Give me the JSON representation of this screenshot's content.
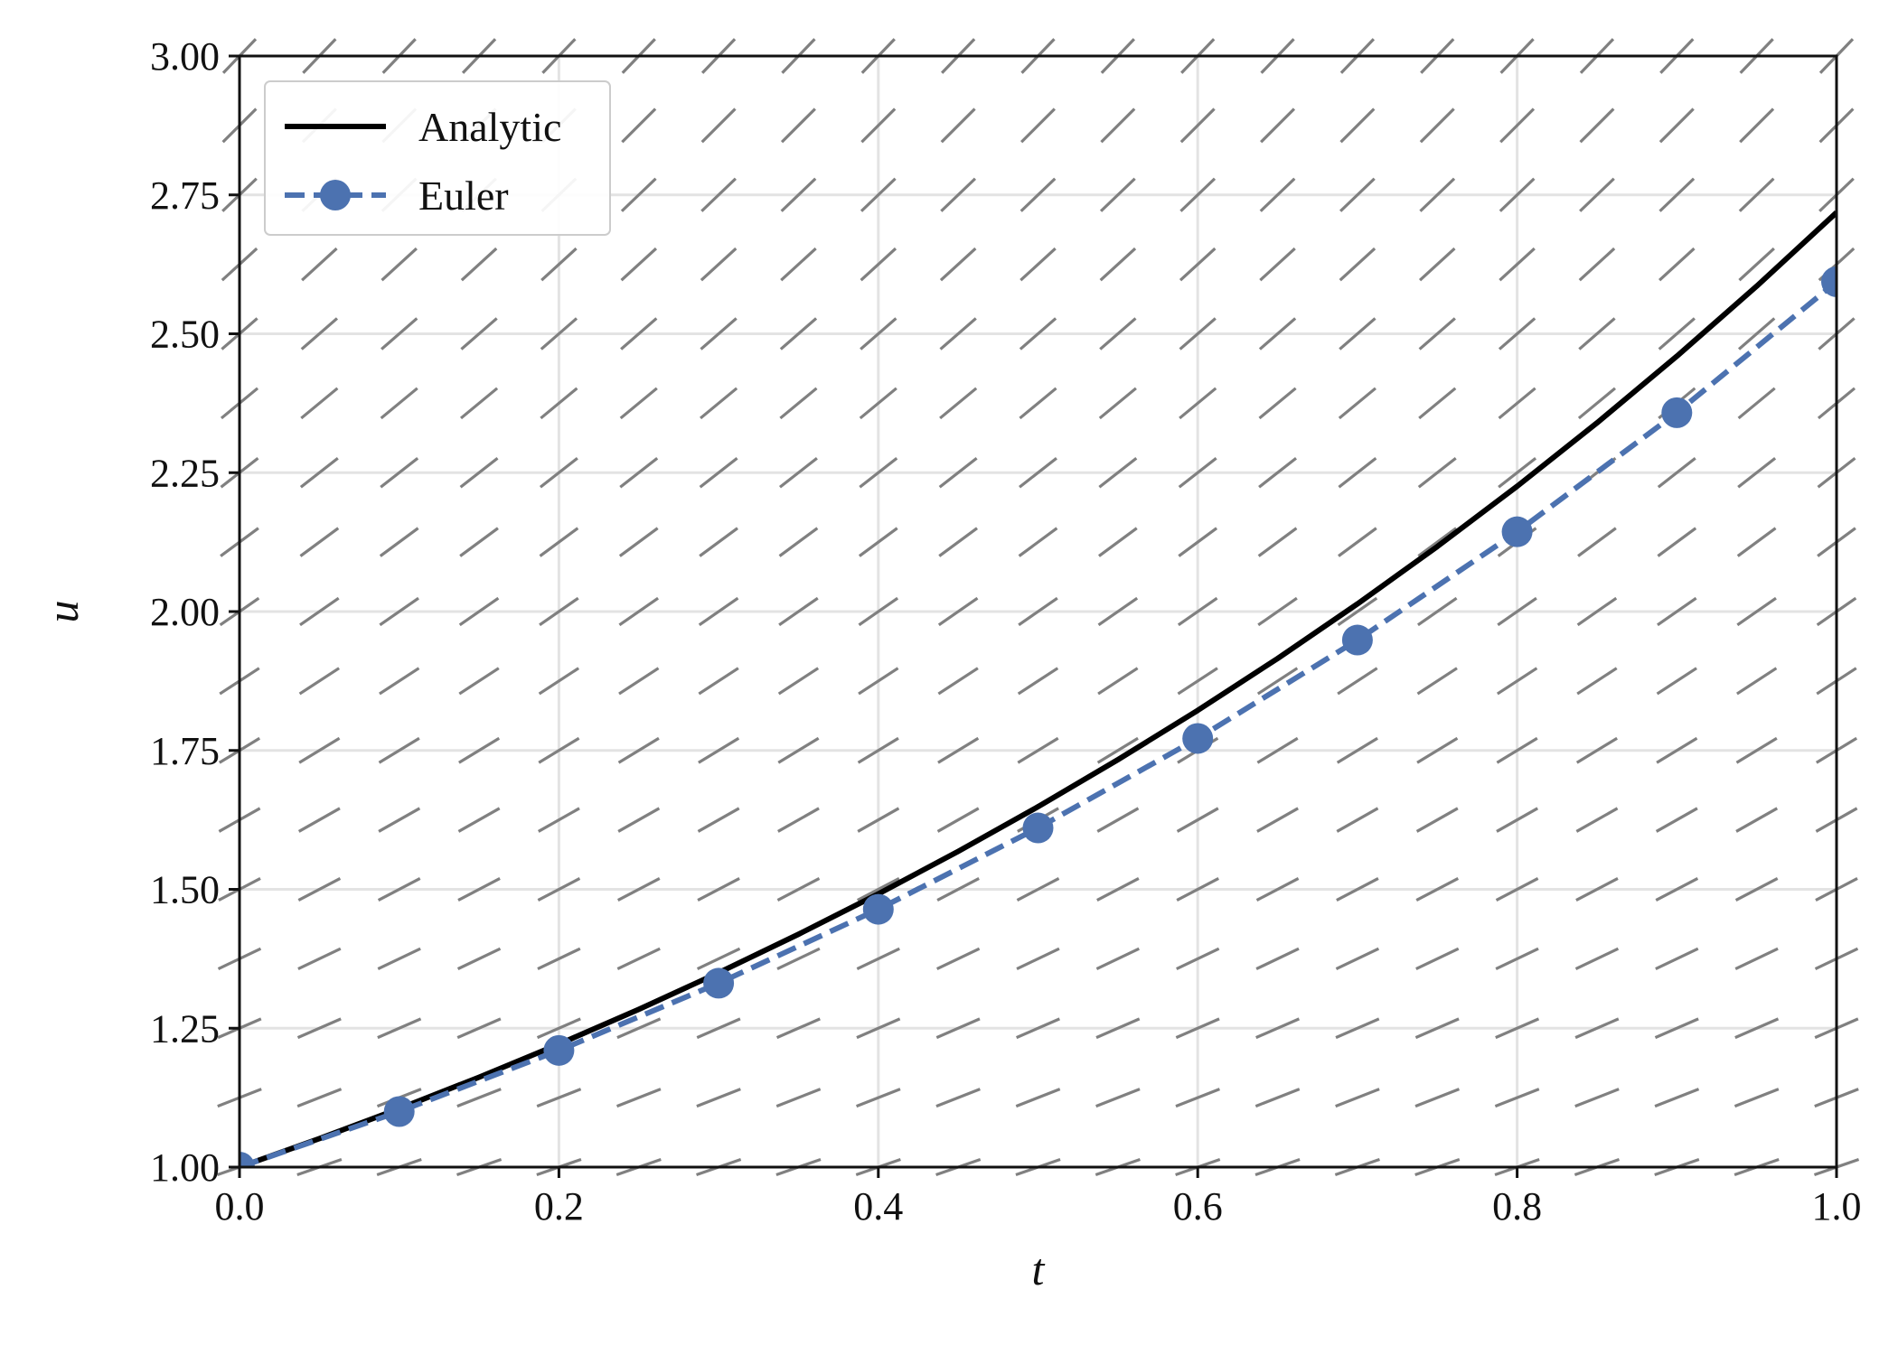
{
  "chart_data": {
    "type": "line",
    "xlabel": "t",
    "ylabel": "u",
    "xlim": [
      0.0,
      1.0
    ],
    "ylim": [
      1.0,
      3.0
    ],
    "xticks": [
      0.0,
      0.2,
      0.4,
      0.6,
      0.8,
      1.0
    ],
    "xtick_labels": [
      "0.0",
      "0.2",
      "0.4",
      "0.6",
      "0.8",
      "1.0"
    ],
    "yticks": [
      1.0,
      1.25,
      1.5,
      1.75,
      2.0,
      2.25,
      2.5,
      2.75,
      3.0
    ],
    "ytick_labels": [
      "1.00",
      "1.25",
      "1.50",
      "1.75",
      "2.00",
      "2.25",
      "2.50",
      "2.75",
      "3.00"
    ],
    "grid": true,
    "legend_position": "top-left",
    "slope_field": {
      "description_of_equation": "du/dt = u",
      "t_samples": [
        0.0,
        0.05,
        0.1,
        0.15,
        0.2,
        0.25,
        0.3,
        0.35,
        0.4,
        0.45,
        0.5,
        0.55,
        0.6,
        0.65,
        0.7,
        0.75,
        0.8,
        0.85,
        0.9,
        0.95,
        1.0
      ],
      "u_samples": [
        1.0,
        1.125,
        1.25,
        1.375,
        1.5,
        1.625,
        1.75,
        1.875,
        2.0,
        2.125,
        2.25,
        2.375,
        2.5,
        2.625,
        2.75,
        2.875,
        3.0
      ],
      "color": "#808080"
    },
    "series": [
      {
        "name": "Analytic",
        "style": "solid",
        "color": "#000000",
        "x": [
          0.0,
          0.05,
          0.1,
          0.15,
          0.2,
          0.25,
          0.3,
          0.35,
          0.4,
          0.45,
          0.5,
          0.55,
          0.6,
          0.65,
          0.7,
          0.75,
          0.8,
          0.85,
          0.9,
          0.95,
          1.0
        ],
        "y": [
          1.0,
          1.0513,
          1.1052,
          1.1618,
          1.2214,
          1.284,
          1.3499,
          1.4191,
          1.4918,
          1.5683,
          1.6487,
          1.7333,
          1.8221,
          1.9155,
          2.0138,
          2.117,
          2.2255,
          2.3396,
          2.4596,
          2.5857,
          2.7183
        ]
      },
      {
        "name": "Euler",
        "style": "dashed",
        "marker": "circle",
        "color": "#4C72B0",
        "x": [
          0.0,
          0.1,
          0.2,
          0.3,
          0.4,
          0.5,
          0.6,
          0.7,
          0.8,
          0.9,
          1.0
        ],
        "y": [
          1.0,
          1.1,
          1.21,
          1.331,
          1.4641,
          1.6105,
          1.7716,
          1.9487,
          2.1436,
          2.3579,
          2.5937
        ]
      }
    ]
  }
}
